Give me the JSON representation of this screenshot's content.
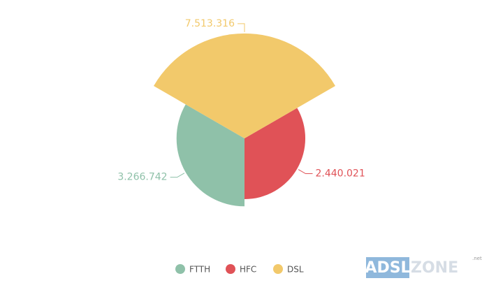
{
  "chart_data": {
    "type": "rose",
    "categories": [
      "FTTH",
      "HFC",
      "DSL"
    ],
    "values": [
      3266742,
      2440021,
      7513316
    ],
    "value_labels": [
      "3.266.742",
      "2.440.021",
      "7.513.316"
    ],
    "colors": [
      "#8fc1a9",
      "#e05257",
      "#f2c96b"
    ]
  },
  "watermark": {
    "main": "ADSL",
    "accent": "ZONE",
    "suffix": ".net"
  }
}
